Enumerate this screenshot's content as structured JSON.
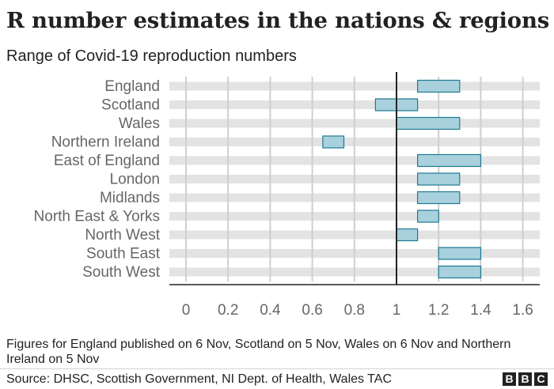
{
  "title": "R number estimates in the nations & regions",
  "subtitle": "Range of Covid-19 reproduction numbers",
  "note": "Figures for England published on 6 Nov, Scotland on 5 Nov, Wales on 6 Nov and Northern Ireland on 5 Nov",
  "source": "Source: DHSC, Scottish Government, NI Dept. of Health, Wales TAC",
  "logo": [
    "B",
    "B",
    "C"
  ],
  "colors": {
    "bar_fill": "#a8d1dd",
    "bar_stroke": "#1f7a93",
    "track": "#e3e3e3",
    "gridline": "#cfcfcf",
    "reference_line": "#222222",
    "label": "#666666"
  },
  "chart_data": {
    "type": "bar",
    "orientation": "horizontal floating range",
    "categories": [
      "England",
      "Scotland",
      "Wales",
      "Northern Ireland",
      "East of England",
      "London",
      "Midlands",
      "North East & Yorks",
      "North West",
      "South East",
      "South West"
    ],
    "series": [
      {
        "ranges": [
          [
            1.1,
            1.3
          ],
          [
            0.9,
            1.1
          ],
          [
            1.0,
            1.3
          ],
          [
            0.65,
            0.75
          ],
          [
            1.1,
            1.4
          ],
          [
            1.1,
            1.3
          ],
          [
            1.1,
            1.3
          ],
          [
            1.1,
            1.2
          ],
          [
            1.0,
            1.1
          ],
          [
            1.2,
            1.4
          ],
          [
            1.2,
            1.4
          ]
        ]
      }
    ],
    "xlim": [
      -0.1,
      1.7
    ],
    "xticks": [
      0,
      0.2,
      0.4,
      0.6,
      0.8,
      1,
      1.2,
      1.4,
      1.6
    ],
    "xticklabels": [
      "0",
      "0.2",
      "0.4",
      "0.6",
      "0.8",
      "1",
      "1.2",
      "1.4",
      "1.6"
    ],
    "reference_line": 1,
    "grid": true
  }
}
